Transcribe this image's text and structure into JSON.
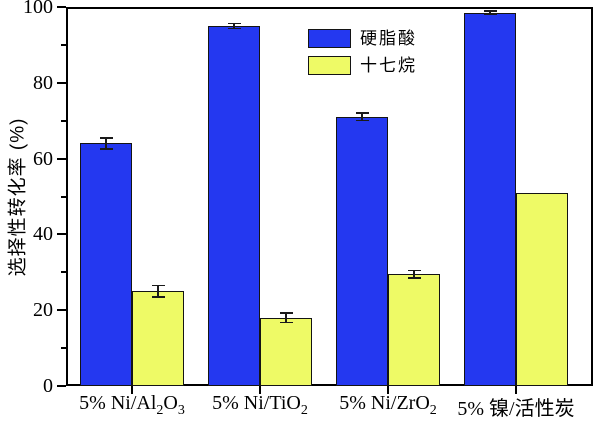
{
  "chart_data": {
    "type": "bar",
    "title": "",
    "xlabel": "",
    "ylabel": "选择性转化率 (%)",
    "ylim": [
      0,
      100
    ],
    "yticks": [
      0,
      20,
      40,
      60,
      80,
      100
    ],
    "yticks_minor": [
      10,
      30,
      50,
      70,
      90
    ],
    "grid": false,
    "legend_position": "upper-center",
    "categories": [
      "5% Ni/Al2O3",
      "5% Ni/TiO2",
      "5% Ni/ZrO2",
      "5% 镍/活性炭"
    ],
    "categories_rich": [
      {
        "segments": [
          {
            "t": "5% Ni/Al"
          },
          {
            "t": "2",
            "sub": true
          },
          {
            "t": "O"
          },
          {
            "t": "3",
            "sub": true
          }
        ]
      },
      {
        "segments": [
          {
            "t": "5% Ni/TiO"
          },
          {
            "t": "2",
            "sub": true
          }
        ]
      },
      {
        "segments": [
          {
            "t": "5% Ni/ZrO"
          },
          {
            "t": "2",
            "sub": true
          }
        ]
      },
      {
        "segments": [
          {
            "t": "5% 镍/活性炭"
          }
        ]
      }
    ],
    "series": [
      {
        "name": "硬脂酸",
        "color": "#2438f0",
        "values": [
          64,
          95,
          71,
          98.5
        ],
        "errors": [
          1.5,
          0.7,
          1.0,
          0.4
        ]
      },
      {
        "name": "十七烷",
        "color": "#eefa66",
        "values": [
          25,
          18,
          29.5,
          51
        ],
        "errors": [
          1.5,
          1.3,
          1.0,
          0
        ]
      }
    ],
    "bar_border_color": "#141414",
    "error_bar_color": "#1a1a1a",
    "axis_color": "#000000"
  }
}
